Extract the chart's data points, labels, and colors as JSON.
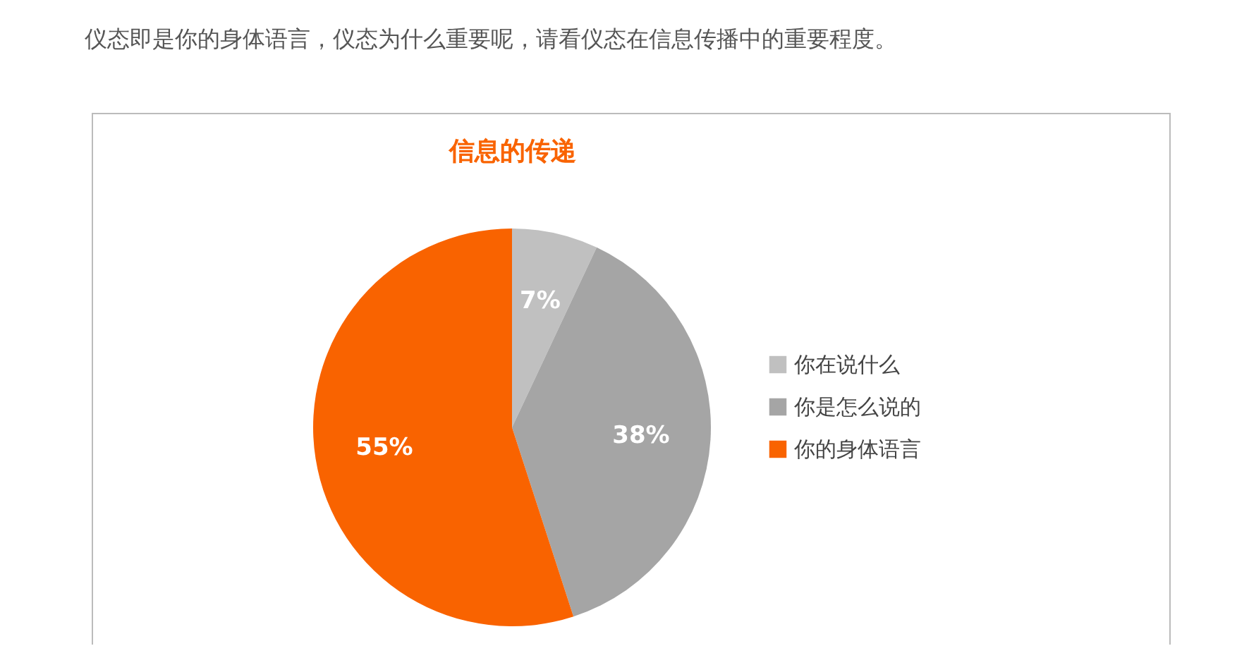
{
  "chart_data": {
    "type": "pie",
    "title": "信息的传递",
    "annotations": [
      "仪态即是你的身体语言，仪态为什么重要呢，请看仪态在信息传播中的重要程度。"
    ],
    "categories": [
      "你在说什么",
      "你是怎么说的",
      "你的身体语言"
    ],
    "values": [
      7,
      38,
      55
    ],
    "colors": [
      "#c0c0c0",
      "#a5a5a5",
      "#f96300"
    ],
    "value_labels": [
      "7%",
      "38%",
      "55%"
    ],
    "legend": "right"
  }
}
